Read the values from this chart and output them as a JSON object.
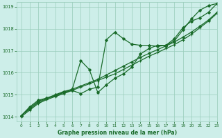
{
  "title": "Graphe pression niveau de la mer (hPa)",
  "background_color": "#cdeee9",
  "grid_color": "#99ccbb",
  "line_color": "#1a6b2a",
  "xlim": [
    -0.5,
    23
  ],
  "ylim": [
    1013.8,
    1019.2
  ],
  "yticks": [
    1014,
    1015,
    1016,
    1017,
    1018,
    1019
  ],
  "xticks": [
    0,
    1,
    2,
    3,
    4,
    5,
    6,
    7,
    8,
    9,
    10,
    11,
    12,
    13,
    14,
    15,
    16,
    17,
    18,
    19,
    20,
    21,
    22,
    23
  ],
  "series": [
    {
      "x": [
        0,
        1,
        2,
        3,
        4,
        5,
        6,
        7,
        8,
        9,
        10,
        11,
        12,
        13,
        14,
        15,
        16,
        17,
        18,
        19,
        20,
        21,
        22,
        23
      ],
      "y": [
        1014.05,
        1014.45,
        1014.75,
        1014.85,
        1014.95,
        1015.1,
        1015.2,
        1015.05,
        1015.25,
        1015.35,
        1017.5,
        1017.85,
        1017.55,
        1017.3,
        1017.25,
        1017.25,
        1017.2,
        1017.25,
        1017.45,
        1017.95,
        1018.45,
        1018.85,
        1019.05,
        1019.15
      ],
      "marker": "D",
      "markersize": 2.0,
      "linewidth": 0.9
    },
    {
      "x": [
        0,
        1,
        2,
        3,
        4,
        5,
        6,
        7,
        8,
        9,
        10,
        11,
        12,
        13,
        14,
        15,
        16,
        17,
        18,
        19,
        20,
        21,
        22,
        23
      ],
      "y": [
        1014.05,
        1014.4,
        1014.7,
        1014.85,
        1015.0,
        1015.15,
        1015.25,
        1016.55,
        1016.15,
        1015.1,
        1015.45,
        1015.75,
        1015.95,
        1016.25,
        1016.85,
        1017.1,
        1017.25,
        1017.25,
        1017.55,
        1018.05,
        1018.35,
        1018.5,
        1018.75,
        1019.15
      ],
      "marker": "D",
      "markersize": 2.0,
      "linewidth": 0.9
    },
    {
      "x": [
        0,
        1,
        2,
        3,
        4,
        5,
        6,
        7,
        8,
        9,
        10,
        11,
        12,
        13,
        14,
        15,
        16,
        17,
        18,
        19,
        20,
        21,
        22,
        23
      ],
      "y": [
        1014.0,
        1014.3,
        1014.6,
        1014.78,
        1014.92,
        1015.05,
        1015.2,
        1015.35,
        1015.5,
        1015.65,
        1015.8,
        1015.95,
        1016.15,
        1016.35,
        1016.55,
        1016.75,
        1016.92,
        1017.1,
        1017.28,
        1017.5,
        1017.75,
        1018.05,
        1018.35,
        1018.7
      ],
      "marker": "+",
      "markersize": 3.0,
      "linewidth": 0.9
    },
    {
      "x": [
        0,
        1,
        2,
        3,
        4,
        5,
        6,
        7,
        8,
        9,
        10,
        11,
        12,
        13,
        14,
        15,
        16,
        17,
        18,
        19,
        20,
        21,
        22,
        23
      ],
      "y": [
        1014.05,
        1014.35,
        1014.65,
        1014.82,
        1014.97,
        1015.12,
        1015.25,
        1015.4,
        1015.55,
        1015.7,
        1015.9,
        1016.1,
        1016.3,
        1016.5,
        1016.7,
        1016.88,
        1017.05,
        1017.22,
        1017.4,
        1017.62,
        1017.85,
        1018.12,
        1018.4,
        1018.75
      ],
      "marker": "D",
      "markersize": 1.8,
      "linewidth": 0.9
    }
  ]
}
